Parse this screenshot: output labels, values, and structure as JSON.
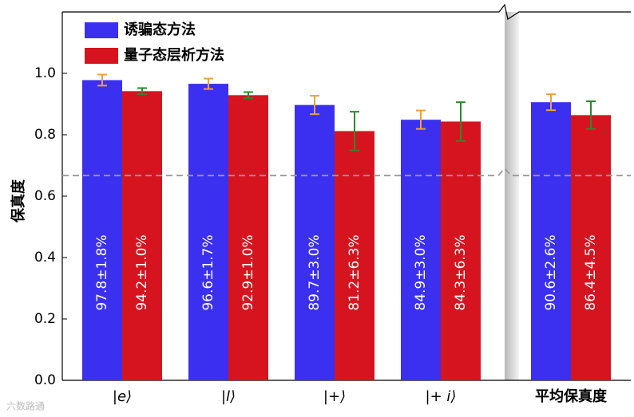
{
  "chart_data": {
    "type": "bar",
    "y_label": "保真度",
    "categories": [
      "|e⟩",
      "|l⟩",
      "|+⟩",
      "|+ i⟩",
      "平均保真度"
    ],
    "series": [
      {
        "name": "诱骗态方法",
        "color": "#3b30f0",
        "error_color": "#f0a030",
        "values": [
          0.978,
          0.966,
          0.897,
          0.849,
          0.906
        ],
        "errors": [
          0.018,
          0.017,
          0.03,
          0.03,
          0.026
        ],
        "value_labels": [
          "97.8±1.8%",
          "96.6±1.7%",
          "89.7±3.0%",
          "84.9±3.0%",
          "90.6±2.6%"
        ]
      },
      {
        "name": "量子态层析方法",
        "color": "#d6141f",
        "error_color": "#2a8a2a",
        "values": [
          0.942,
          0.929,
          0.812,
          0.843,
          0.864
        ],
        "errors": [
          0.01,
          0.01,
          0.063,
          0.063,
          0.045
        ],
        "value_labels": [
          "94.2±1.0%",
          "92.9±1.0%",
          "81.2±6.3%",
          "84.3±6.3%",
          "86.4±4.5%"
        ]
      }
    ],
    "ylim": [
      0,
      1.2
    ],
    "yticks": [
      {
        "value": 0,
        "label": "0.0"
      },
      0.2,
      0.4,
      0.6,
      0.8,
      {
        "value": 1,
        "label": "1.0"
      }
    ],
    "reference_line": 0.667,
    "legend": "upper left",
    "watermark": "六数路通"
  }
}
